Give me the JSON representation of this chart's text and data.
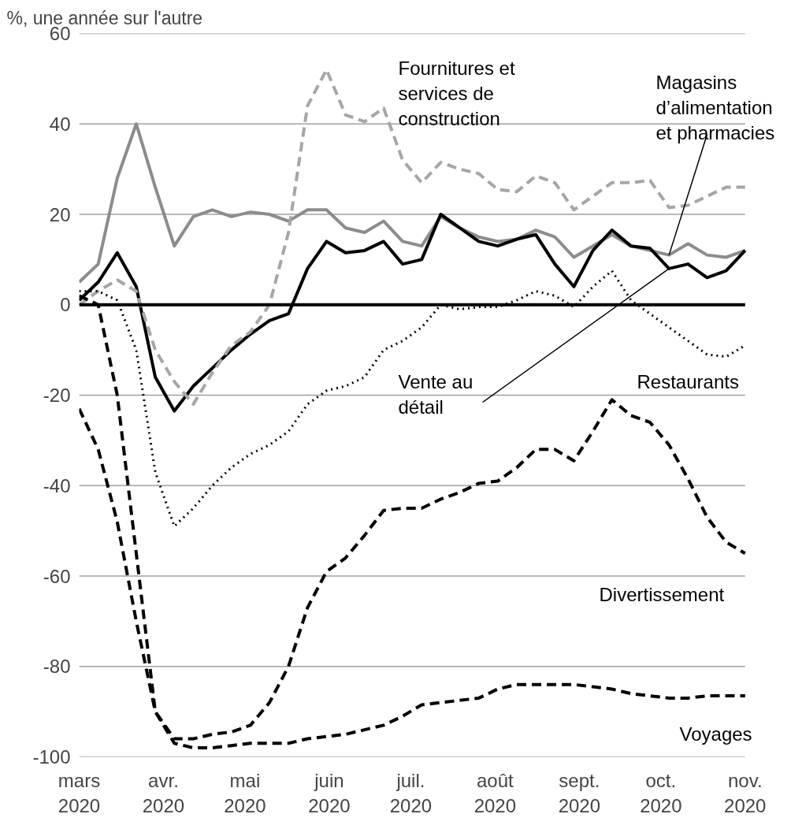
{
  "chart_data": {
    "type": "line",
    "title": "%, une année sur l'autre",
    "x": [
      "2020-03-01",
      "2020-03-08",
      "2020-03-15",
      "2020-03-22",
      "2020-03-29",
      "2020-04-05",
      "2020-04-12",
      "2020-04-19",
      "2020-04-26",
      "2020-05-03",
      "2020-05-10",
      "2020-05-17",
      "2020-05-24",
      "2020-05-31",
      "2020-06-07",
      "2020-06-14",
      "2020-06-21",
      "2020-06-28",
      "2020-07-05",
      "2020-07-12",
      "2020-07-19",
      "2020-07-26",
      "2020-08-02",
      "2020-08-09",
      "2020-08-16",
      "2020-08-23",
      "2020-08-30",
      "2020-09-06",
      "2020-09-13",
      "2020-09-20",
      "2020-09-27",
      "2020-10-04",
      "2020-10-11",
      "2020-10-18",
      "2020-10-25",
      "2020-11-01"
    ],
    "xlim": [
      "2020-03-01",
      "2020-11-01"
    ],
    "xticks": [
      {
        "value": "2020-03-01",
        "label": "mars\n2020"
      },
      {
        "value": "2020-04-01",
        "label": "avr.\n2020"
      },
      {
        "value": "2020-05-01",
        "label": "mai\n2020"
      },
      {
        "value": "2020-06-01",
        "label": "juin\n2020"
      },
      {
        "value": "2020-07-01",
        "label": "juil.\n2020"
      },
      {
        "value": "2020-08-01",
        "label": "août\n2020"
      },
      {
        "value": "2020-09-01",
        "label": "sept.\n2020"
      },
      {
        "value": "2020-10-01",
        "label": "oct.\n2020"
      },
      {
        "value": "2020-11-01",
        "label": "nov.\n2020"
      }
    ],
    "ylim": [
      -100,
      60
    ],
    "yticks": [
      -100,
      -80,
      -60,
      -40,
      -20,
      0,
      20,
      40,
      60
    ],
    "grid": "y",
    "ref_lines": [
      {
        "axis": "y",
        "value": 0,
        "color": "#000000"
      }
    ],
    "series": [
      {
        "color": "#8c8c8c",
        "line_style": "solid",
        "values": [
          5,
          9,
          28,
          40,
          26,
          13,
          19.5,
          21,
          19.5,
          20.5,
          20,
          18.5,
          21,
          21,
          17,
          16,
          18.5,
          14,
          13,
          19.5,
          17,
          15,
          14,
          14.5,
          16.5,
          15,
          10.5,
          13,
          15.5,
          13,
          12,
          11,
          13.5,
          11,
          10.5,
          12
        ]
      },
      {
        "color": "#000000",
        "line_style": "solid",
        "values": [
          1,
          5,
          11.5,
          4,
          -16,
          -23.5,
          -18,
          -14,
          -10,
          -6.5,
          -3.5,
          -2,
          8,
          14,
          11.5,
          12,
          14,
          9,
          10,
          20,
          17,
          14,
          13,
          14.5,
          15.5,
          9,
          4,
          12,
          16.5,
          13,
          12.5,
          8,
          9,
          6,
          7.5,
          12
        ]
      },
      {
        "color": "#a6a6a6",
        "line_style": "dashed",
        "values": [
          0,
          3,
          5.5,
          3,
          -10,
          -17,
          -22,
          -15,
          -9,
          -6,
          0,
          16,
          44,
          52,
          42,
          40.5,
          43.5,
          32,
          27,
          31.5,
          30,
          29,
          25.5,
          25,
          28.5,
          27,
          21,
          24,
          27,
          27,
          27.5,
          21.5,
          22,
          24,
          26,
          26
        ]
      },
      {
        "color": "#000000",
        "line_style": "dotted",
        "values": [
          3,
          3,
          1,
          -10,
          -37,
          -49,
          -45,
          -40,
          -36,
          -33,
          -31,
          -28,
          -22,
          -19,
          -18,
          -16,
          -10,
          -8,
          -5,
          0,
          -1,
          -0.5,
          -0.5,
          1,
          3,
          2,
          -0.5,
          4,
          7.5,
          1,
          -2,
          -5,
          -8,
          -11,
          -11.5,
          -9
        ]
      },
      {
        "color": "#000000",
        "line_style": "dashed",
        "values": [
          2,
          0,
          -20,
          -55,
          -90,
          -96,
          -96,
          -95,
          -94.5,
          -93,
          -88,
          -80,
          -67,
          -59,
          -56,
          -51,
          -45.5,
          -45,
          -45,
          -43,
          -41.5,
          -39.5,
          -39,
          -36,
          -32,
          -32,
          -34.5,
          -28,
          -21,
          -24.5,
          -26,
          -31,
          -38.5,
          -47,
          -52.5,
          -55
        ]
      },
      {
        "color": "#000000",
        "line_style": "dashed",
        "values": [
          -23,
          -32,
          -48,
          -70,
          -90,
          -97,
          -98,
          -98,
          -97.5,
          -97,
          -97,
          -97,
          -96,
          -95.5,
          -95,
          -94,
          -93,
          -91,
          -88.5,
          -88,
          -87.5,
          -87,
          -85,
          -84,
          -84,
          -84,
          -84,
          -84.5,
          -85,
          -86,
          -86.5,
          -87,
          -87,
          -86.5,
          -86.5,
          -86.5
        ]
      }
    ],
    "annotations": [
      "Fournitures et\nservices de\nconstruction",
      {
        "text": "Magasins\nd’alimentation\net pharmacies",
        "x": "2020-10-04",
        "y": 11
      },
      "Restaurants",
      {
        "text": "Vente au\ndétail",
        "x": "2020-10-04",
        "y": 8
      },
      "Divertissement",
      "Voyages"
    ]
  }
}
